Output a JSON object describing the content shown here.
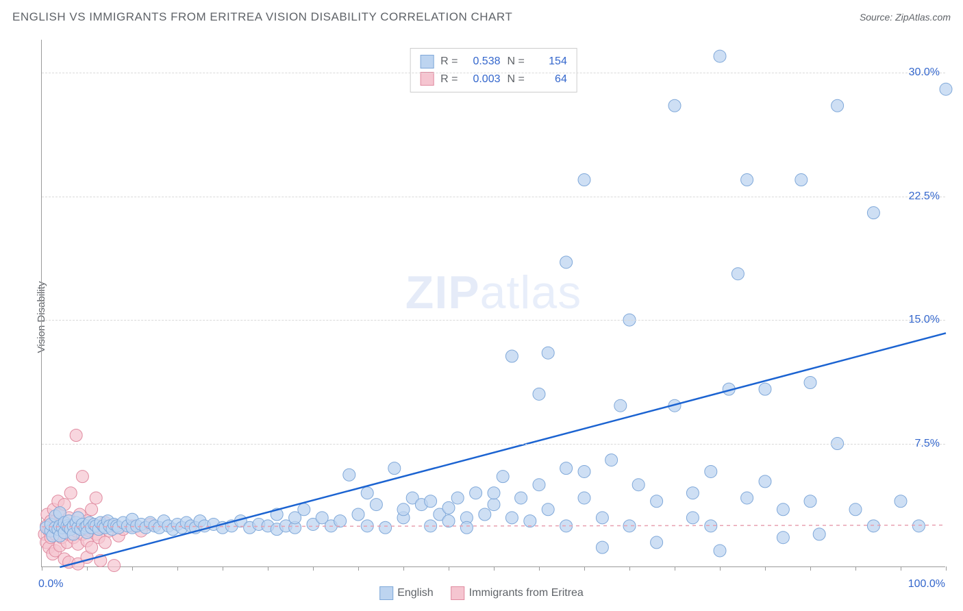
{
  "header": {
    "title": "ENGLISH VS IMMIGRANTS FROM ERITREA VISION DISABILITY CORRELATION CHART",
    "source_prefix": "Source: ",
    "source": "ZipAtlas.com"
  },
  "chart": {
    "type": "scatter",
    "y_axis_label": "Vision Disability",
    "watermark_zip": "ZIP",
    "watermark_atlas": "atlas",
    "xlim": [
      0,
      100
    ],
    "ylim": [
      0,
      32
    ],
    "x_tick_positions": [
      0,
      5,
      10,
      15,
      20,
      25,
      30,
      35,
      40,
      45,
      50,
      55,
      60,
      65,
      70,
      75,
      80,
      85,
      90,
      95,
      100
    ],
    "x_tick_labels": {
      "0": "0.0%",
      "100": "100.0%"
    },
    "y_ticks": [
      {
        "v": 7.5,
        "label": "7.5%"
      },
      {
        "v": 15.0,
        "label": "15.0%"
      },
      {
        "v": 22.5,
        "label": "22.5%"
      },
      {
        "v": 30.0,
        "label": "30.0%"
      }
    ],
    "background_color": "#ffffff",
    "grid_color": "#d9d9d9",
    "axis_color": "#9a9a9a",
    "tick_label_color": "#3366cc",
    "series": [
      {
        "id": "english",
        "label": "English",
        "marker_color_fill": "#bdd4f0",
        "marker_color_stroke": "#7fa8d9",
        "marker_opacity": 0.75,
        "marker_radius": 9,
        "trend": {
          "x1": 2,
          "y1": 0,
          "x2": 100,
          "y2": 14.2,
          "color": "#1b63d1",
          "width": 2.5,
          "dash": "none"
        },
        "stats": {
          "R": "0.538",
          "N": "154"
        },
        "points": [
          [
            0.5,
            2.4
          ],
          [
            1,
            2.2
          ],
          [
            1,
            2.6
          ],
          [
            1.2,
            1.9
          ],
          [
            1.5,
            2.4
          ],
          [
            1.5,
            3.1
          ],
          [
            1.8,
            2.3
          ],
          [
            2,
            2.5
          ],
          [
            2,
            1.9
          ],
          [
            2,
            3.3
          ],
          [
            2.3,
            2.4
          ],
          [
            2.5,
            2.7
          ],
          [
            2.5,
            2.1
          ],
          [
            2.8,
            2.5
          ],
          [
            3,
            2.4
          ],
          [
            3,
            2.8
          ],
          [
            3.2,
            2.3
          ],
          [
            3.5,
            2.5
          ],
          [
            3.5,
            2.0
          ],
          [
            3.8,
            2.7
          ],
          [
            4,
            2.4
          ],
          [
            4,
            3.0
          ],
          [
            4.3,
            2.3
          ],
          [
            4.5,
            2.6
          ],
          [
            4.8,
            2.4
          ],
          [
            5,
            2.5
          ],
          [
            5,
            2.1
          ],
          [
            5.3,
            2.7
          ],
          [
            5.5,
            2.4
          ],
          [
            5.8,
            2.6
          ],
          [
            6,
            2.5
          ],
          [
            6.3,
            2.3
          ],
          [
            6.5,
            2.7
          ],
          [
            6.8,
            2.5
          ],
          [
            7,
            2.4
          ],
          [
            7.3,
            2.8
          ],
          [
            7.5,
            2.5
          ],
          [
            7.8,
            2.3
          ],
          [
            8,
            2.6
          ],
          [
            8.3,
            2.5
          ],
          [
            8.5,
            2.4
          ],
          [
            9,
            2.7
          ],
          [
            9.5,
            2.5
          ],
          [
            10,
            2.4
          ],
          [
            10,
            2.9
          ],
          [
            10.5,
            2.5
          ],
          [
            11,
            2.6
          ],
          [
            11.5,
            2.4
          ],
          [
            12,
            2.7
          ],
          [
            12.5,
            2.5
          ],
          [
            13,
            2.4
          ],
          [
            13.5,
            2.8
          ],
          [
            14,
            2.5
          ],
          [
            14.5,
            2.3
          ],
          [
            15,
            2.6
          ],
          [
            15.5,
            2.4
          ],
          [
            16,
            2.7
          ],
          [
            16.5,
            2.5
          ],
          [
            17,
            2.4
          ],
          [
            17.5,
            2.8
          ],
          [
            18,
            2.5
          ],
          [
            19,
            2.6
          ],
          [
            20,
            2.4
          ],
          [
            21,
            2.5
          ],
          [
            22,
            2.8
          ],
          [
            23,
            2.4
          ],
          [
            24,
            2.6
          ],
          [
            25,
            2.5
          ],
          [
            26,
            2.3
          ],
          [
            26,
            3.2
          ],
          [
            27,
            2.5
          ],
          [
            28,
            2.4
          ],
          [
            28,
            3.0
          ],
          [
            29,
            3.5
          ],
          [
            30,
            2.6
          ],
          [
            31,
            3.0
          ],
          [
            32,
            2.5
          ],
          [
            33,
            2.8
          ],
          [
            34,
            5.6
          ],
          [
            35,
            3.2
          ],
          [
            36,
            2.5
          ],
          [
            36,
            4.5
          ],
          [
            37,
            3.8
          ],
          [
            38,
            2.4
          ],
          [
            39,
            6.0
          ],
          [
            40,
            3.0
          ],
          [
            40,
            3.5
          ],
          [
            41,
            4.2
          ],
          [
            42,
            3.8
          ],
          [
            43,
            2.5
          ],
          [
            43,
            4.0
          ],
          [
            44,
            3.2
          ],
          [
            45,
            2.8
          ],
          [
            45,
            3.6
          ],
          [
            46,
            4.2
          ],
          [
            47,
            3.0
          ],
          [
            47,
            2.4
          ],
          [
            48,
            4.5
          ],
          [
            49,
            3.2
          ],
          [
            50,
            3.8
          ],
          [
            50,
            4.5
          ],
          [
            51,
            5.5
          ],
          [
            52,
            3.0
          ],
          [
            52,
            12.8
          ],
          [
            53,
            4.2
          ],
          [
            54,
            2.8
          ],
          [
            55,
            5.0
          ],
          [
            55,
            10.5
          ],
          [
            56,
            3.5
          ],
          [
            56,
            13.0
          ],
          [
            58,
            2.5
          ],
          [
            58,
            6.0
          ],
          [
            58,
            18.5
          ],
          [
            60,
            4.2
          ],
          [
            60,
            5.8
          ],
          [
            60,
            23.5
          ],
          [
            62,
            3.0
          ],
          [
            62,
            1.2
          ],
          [
            63,
            6.5
          ],
          [
            64,
            9.8
          ],
          [
            65,
            2.5
          ],
          [
            65,
            15.0
          ],
          [
            66,
            5.0
          ],
          [
            68,
            4.0
          ],
          [
            68,
            1.5
          ],
          [
            70,
            9.8
          ],
          [
            70,
            28.0
          ],
          [
            72,
            4.5
          ],
          [
            72,
            3.0
          ],
          [
            74,
            2.5
          ],
          [
            74,
            5.8
          ],
          [
            75,
            1.0
          ],
          [
            75,
            31.0
          ],
          [
            76,
            10.8
          ],
          [
            77,
            17.8
          ],
          [
            78,
            4.2
          ],
          [
            78,
            23.5
          ],
          [
            80,
            5.2
          ],
          [
            80,
            10.8
          ],
          [
            82,
            3.5
          ],
          [
            82,
            1.8
          ],
          [
            84,
            23.5
          ],
          [
            85,
            4.0
          ],
          [
            85,
            11.2
          ],
          [
            86,
            2.0
          ],
          [
            88,
            7.5
          ],
          [
            88,
            28.0
          ],
          [
            90,
            3.5
          ],
          [
            92,
            2.5
          ],
          [
            92,
            21.5
          ],
          [
            95,
            4.0
          ],
          [
            97,
            2.5
          ],
          [
            100,
            29.0
          ]
        ]
      },
      {
        "id": "eritrea",
        "label": "Immigrants from Eritrea",
        "marker_color_fill": "#f5c5d0",
        "marker_color_stroke": "#e08ba0",
        "marker_opacity": 0.7,
        "marker_radius": 9,
        "trend": {
          "x1": 0,
          "y1": 2.45,
          "x2": 100,
          "y2": 2.55,
          "color": "#e8a0b0",
          "width": 1.5,
          "dash": "5,5"
        },
        "stats": {
          "R": "0.003",
          "N": "64"
        },
        "points": [
          [
            0.3,
            2.0
          ],
          [
            0.5,
            2.5
          ],
          [
            0.5,
            1.5
          ],
          [
            0.6,
            3.2
          ],
          [
            0.8,
            2.2
          ],
          [
            0.8,
            1.2
          ],
          [
            1.0,
            2.8
          ],
          [
            1.0,
            1.8
          ],
          [
            1.2,
            2.4
          ],
          [
            1.2,
            0.8
          ],
          [
            1.3,
            3.5
          ],
          [
            1.5,
            2.0
          ],
          [
            1.5,
            1.0
          ],
          [
            1.5,
            2.8
          ],
          [
            1.8,
            2.3
          ],
          [
            1.8,
            4.0
          ],
          [
            2.0,
            2.5
          ],
          [
            2.0,
            1.3
          ],
          [
            2.0,
            3.2
          ],
          [
            2.2,
            1.8
          ],
          [
            2.2,
            2.7
          ],
          [
            2.5,
            0.5
          ],
          [
            2.5,
            2.2
          ],
          [
            2.5,
            3.8
          ],
          [
            2.8,
            1.5
          ],
          [
            2.8,
            2.5
          ],
          [
            3.0,
            2.0
          ],
          [
            3.0,
            0.3
          ],
          [
            3.0,
            3.0
          ],
          [
            3.2,
            2.4
          ],
          [
            3.2,
            4.5
          ],
          [
            3.5,
            1.8
          ],
          [
            3.5,
            2.6
          ],
          [
            3.8,
            2.2
          ],
          [
            3.8,
            8.0
          ],
          [
            4.0,
            0.2
          ],
          [
            4.0,
            2.5
          ],
          [
            4.0,
            1.4
          ],
          [
            4.2,
            3.2
          ],
          [
            4.5,
            2.0
          ],
          [
            4.5,
            5.5
          ],
          [
            4.8,
            2.3
          ],
          [
            5.0,
            1.6
          ],
          [
            5.0,
            2.8
          ],
          [
            5.0,
            0.6
          ],
          [
            5.3,
            2.2
          ],
          [
            5.5,
            3.5
          ],
          [
            5.5,
            1.2
          ],
          [
            5.8,
            2.5
          ],
          [
            6.0,
            2.0
          ],
          [
            6.0,
            4.2
          ],
          [
            6.3,
            1.8
          ],
          [
            6.5,
            2.4
          ],
          [
            6.5,
            0.4
          ],
          [
            7.0,
            2.7
          ],
          [
            7.0,
            1.5
          ],
          [
            7.5,
            2.2
          ],
          [
            8.0,
            0.1
          ],
          [
            8.0,
            2.5
          ],
          [
            8.5,
            1.9
          ],
          [
            9.0,
            2.3
          ],
          [
            10.0,
            2.5
          ],
          [
            11.0,
            2.2
          ],
          [
            12.0,
            2.6
          ]
        ]
      }
    ],
    "legend_top": {
      "R_label": "R  =",
      "N_label": "N  ="
    },
    "legend_bottom": {
      "items": [
        "english",
        "eritrea"
      ]
    }
  }
}
